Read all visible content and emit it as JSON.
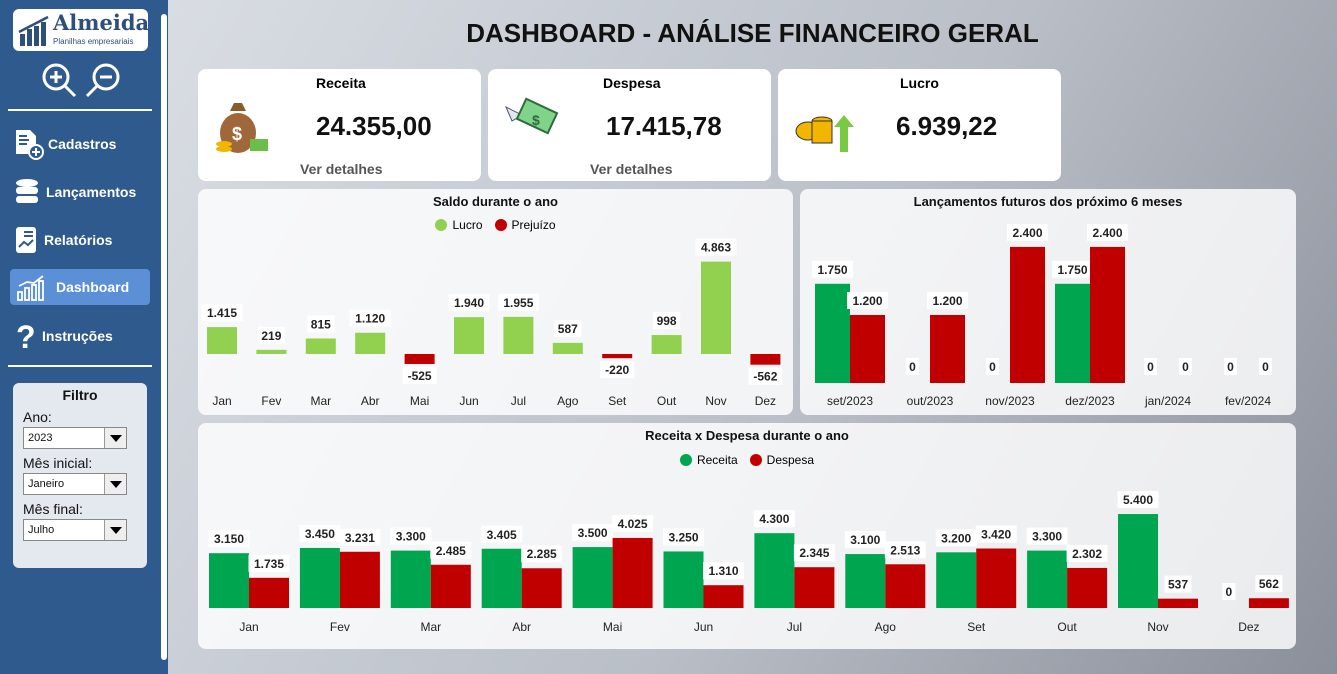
{
  "sidebar": {
    "logo": {
      "name": "Almeida",
      "tagline": "Planilhas empresariais"
    },
    "items": [
      {
        "label": "Cadastros",
        "icon": "document-add-icon"
      },
      {
        "label": "Lançamentos",
        "icon": "database-icon"
      },
      {
        "label": "Relatórios",
        "icon": "report-chart-icon"
      },
      {
        "label": "Dashboard",
        "icon": "dashboard-chart-icon",
        "active": true
      },
      {
        "label": "Instruções",
        "icon": "question-icon"
      }
    ],
    "filter": {
      "title": "Filtro",
      "ano_label": "Ano:",
      "ano": "2023",
      "mes_inicial_label": "Mês inicial:",
      "mes_inicial": "Janeiro",
      "mes_final_label": "Mês final:",
      "mes_final": "Julho"
    }
  },
  "header": {
    "title": "DASHBOARD - ANÁLISE FINANCEIRO GERAL"
  },
  "cards": [
    {
      "label": "Receita",
      "value": "24.355,00",
      "link": "Ver detalhes"
    },
    {
      "label": "Despesa",
      "value": "17.415,78",
      "link": "Ver detalhes"
    },
    {
      "label": "Lucro",
      "value": "6.939,22"
    }
  ],
  "colors": {
    "lucro": "#92d050",
    "prejuizo": "#c00000",
    "receita": "#00a550",
    "despesa": "#c00000",
    "sidebar": "#2e5a8e"
  },
  "chart_data": [
    {
      "type": "bar",
      "title": "Saldo durante o ano",
      "legend": [
        "Lucro",
        "Prejuízo"
      ],
      "categories": [
        "Jan",
        "Fev",
        "Mar",
        "Abr",
        "Mai",
        "Jun",
        "Jul",
        "Ago",
        "Set",
        "Out",
        "Nov",
        "Dez"
      ],
      "values": [
        1415,
        219,
        815,
        1120,
        -525,
        1940,
        1955,
        587,
        -220,
        998,
        4863,
        -562
      ],
      "labels": [
        "1.415",
        "219",
        "815",
        "1.120",
        "-525",
        "1.940",
        "1.955",
        "587",
        "-220",
        "998",
        "4.863",
        "-562"
      ]
    },
    {
      "type": "bar",
      "title": "Lançamentos futuros dos próximo 6 meses",
      "categories": [
        "set/2023",
        "out/2023",
        "nov/2023",
        "dez/2023",
        "jan/2024",
        "fev/2024"
      ],
      "series": [
        {
          "values": [
            1750,
            0,
            0,
            1750,
            0,
            0
          ],
          "labels": [
            "1.750",
            "0",
            "0",
            "1.750",
            "0",
            "0"
          ]
        },
        {
          "values": [
            1200,
            1200,
            2400,
            2400,
            0,
            0
          ],
          "labels": [
            "1.200",
            "1.200",
            "2.400",
            "2.400",
            "0",
            "0"
          ]
        }
      ]
    },
    {
      "type": "bar",
      "title": "Receita x Despesa durante o ano",
      "legend": [
        "Receita",
        "Despesa"
      ],
      "categories": [
        "Jan",
        "Fev",
        "Mar",
        "Abr",
        "Mai",
        "Jun",
        "Jul",
        "Ago",
        "Set",
        "Out",
        "Nov",
        "Dez"
      ],
      "series": [
        {
          "name": "Receita",
          "values": [
            3150,
            3450,
            3300,
            3405,
            3500,
            3250,
            4300,
            3100,
            3200,
            3300,
            5400,
            0
          ],
          "labels": [
            "3.150",
            "3.450",
            "3.300",
            "3.405",
            "3.500",
            "3.250",
            "4.300",
            "3.100",
            "3.200",
            "3.300",
            "5.400",
            "0"
          ]
        },
        {
          "name": "Despesa",
          "values": [
            1735,
            3231,
            2485,
            2285,
            4025,
            1310,
            2345,
            2513,
            3420,
            2302,
            537,
            562
          ],
          "labels": [
            "1.735",
            "3.231",
            "2.485",
            "2.285",
            "4.025",
            "1.310",
            "2.345",
            "2.513",
            "3.420",
            "2.302",
            "537",
            "562"
          ]
        }
      ]
    }
  ]
}
